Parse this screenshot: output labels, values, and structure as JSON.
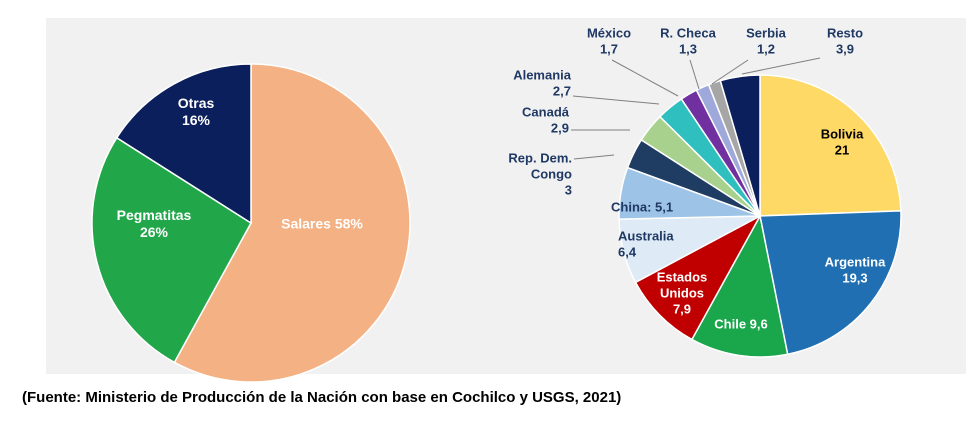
{
  "source_note": "(Fuente: Ministerio de Producción de la Nación con base en Cochilco y USGS, 2021)",
  "chart_data": [
    {
      "type": "pie",
      "slices": [
        {
          "lines": [
            "Salares 58%"
          ],
          "value": 58,
          "color": "#f4b183",
          "text_color": "#ffffff"
        },
        {
          "lines": [
            "Pegmatitas",
            "26%"
          ],
          "value": 26,
          "color": "#22a64a",
          "text_color": "#ffffff"
        },
        {
          "lines": [
            "Otras",
            "16%"
          ],
          "value": 16,
          "color": "#0b1f5c",
          "text_color": "#ffffff"
        }
      ]
    },
    {
      "type": "pie",
      "slices": [
        {
          "lines": [
            "Bolivia",
            "21"
          ],
          "value": 21,
          "color": "#ffd966",
          "text_color": "#000000"
        },
        {
          "lines": [
            "Argentina",
            "19,3"
          ],
          "value": 19.3,
          "color": "#1f6fb2",
          "text_color": "#ffffff"
        },
        {
          "lines": [
            "Chile 9,6"
          ],
          "value": 9.6,
          "color": "#1aa64a",
          "text_color": "#ffffff"
        },
        {
          "lines": [
            "Estados",
            "Unidos",
            "7,9"
          ],
          "value": 7.9,
          "color": "#c00000",
          "text_color": "#ffffff"
        },
        {
          "lines": [
            "Australia",
            "6,4"
          ],
          "value": 6.4,
          "color": "#deebf7",
          "text_color": "#1f3864"
        },
        {
          "lines": [
            "China: 5,1"
          ],
          "value": 5.1,
          "color": "#9dc3e6",
          "text_color": "#1f3864"
        },
        {
          "lines": [
            "Rep. Dem.",
            "Congo",
            "3"
          ],
          "value": 3,
          "color": "#1f3c63",
          "text_color": "#1f3864"
        },
        {
          "lines": [
            "Canadá",
            "2,9"
          ],
          "value": 2.9,
          "color": "#a9d18e",
          "text_color": "#1f3864"
        },
        {
          "lines": [
            "Alemania",
            "2,7"
          ],
          "value": 2.7,
          "color": "#2fbfbf",
          "text_color": "#1f3864"
        },
        {
          "lines": [
            "México",
            "1,7"
          ],
          "value": 1.7,
          "color": "#7030a0",
          "text_color": "#1f3864"
        },
        {
          "lines": [
            "R. Checa",
            "1,3"
          ],
          "value": 1.3,
          "color": "#9fa8da",
          "text_color": "#1f3864"
        },
        {
          "lines": [
            "Serbia",
            "1,2"
          ],
          "value": 1.2,
          "color": "#a6a6a6",
          "text_color": "#1f3864"
        },
        {
          "lines": [
            "Resto",
            "3,9"
          ],
          "value": 3.9,
          "color": "#0b1f5c",
          "text_color": "#1f3864"
        }
      ]
    }
  ]
}
